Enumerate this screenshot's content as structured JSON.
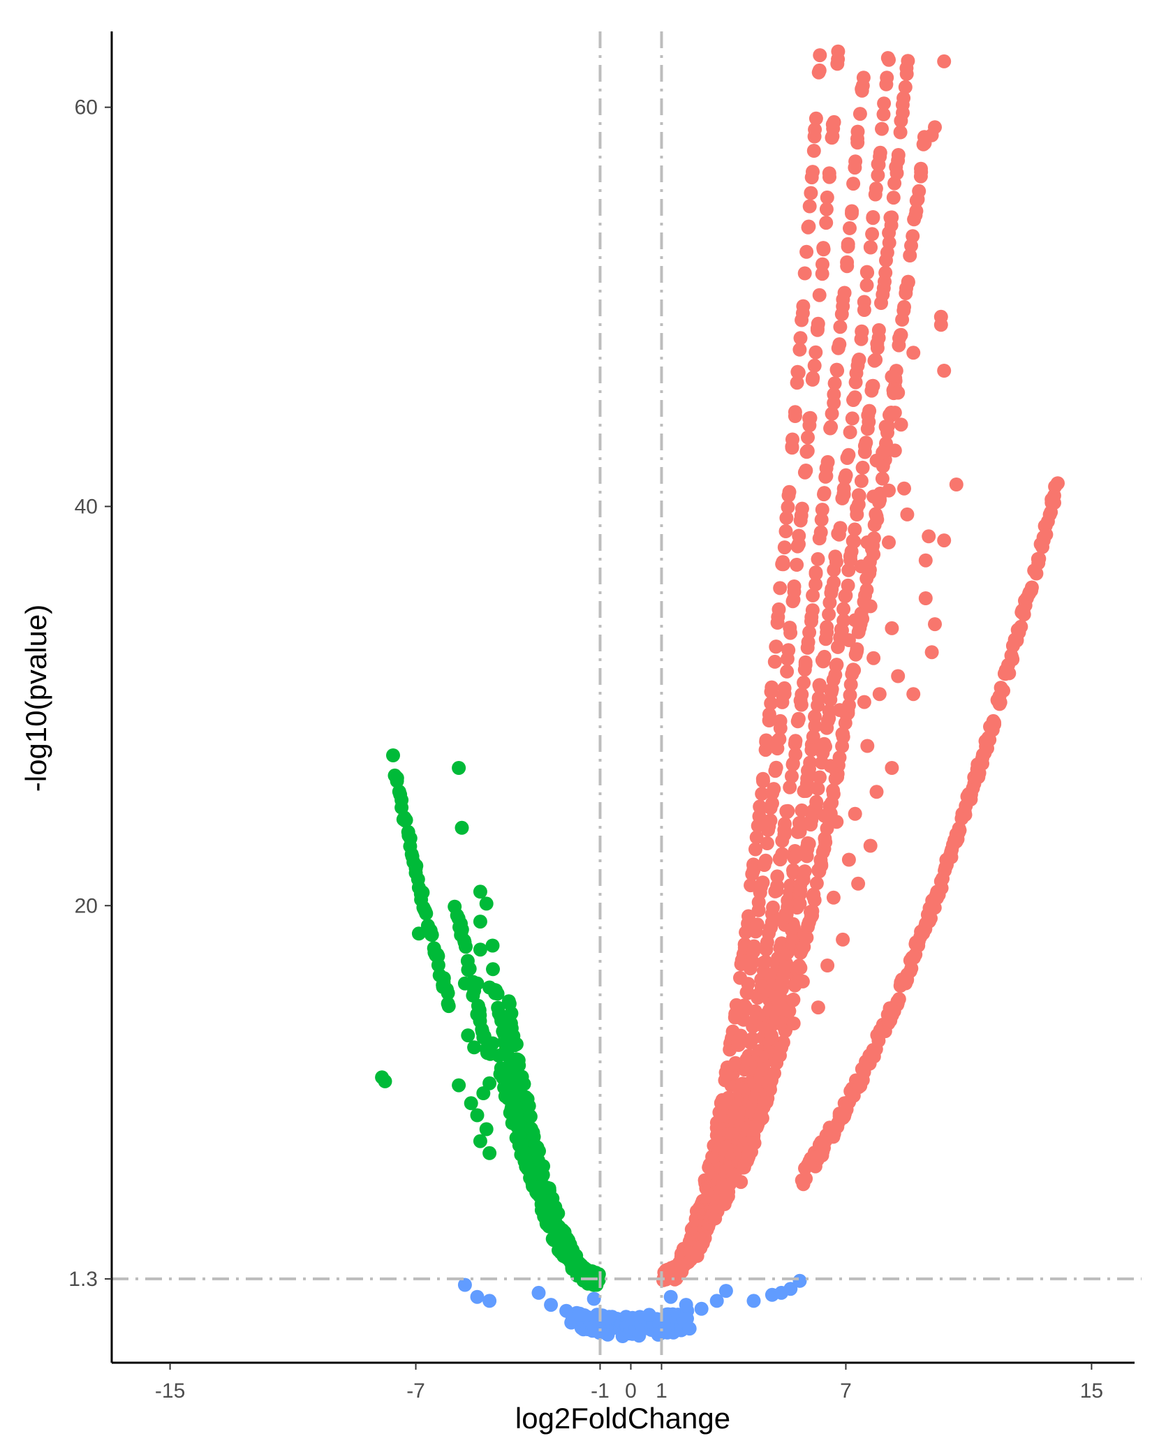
{
  "chart_data": {
    "type": "scatter",
    "title": "",
    "xlabel": "log2FoldChange",
    "ylabel": "-log10(pvalue)",
    "xlim": [
      -16.9,
      16.4
    ],
    "ylim": [
      -2.9,
      63.8
    ],
    "x_ticks": [
      -15,
      -7,
      -1,
      0,
      1,
      7,
      15
    ],
    "x_tick_labels": [
      "-15",
      "-7",
      "-1",
      "0",
      "1",
      "7",
      "15"
    ],
    "y_ticks": [
      1.3,
      20,
      40,
      60
    ],
    "y_tick_labels": [
      "1.3",
      "20",
      "40",
      "60"
    ],
    "grid": false,
    "legend": "none",
    "thresholds": {
      "vertical": [
        -1,
        1
      ],
      "horizontal": 1.3,
      "style": "dashed",
      "color": "#bdbdbd"
    },
    "colors": {
      "down": "#00ba38",
      "up": "#f8766d",
      "not_significant": "#619cff"
    },
    "series": [
      {
        "group": "down",
        "points": [
          [
            -5.6,
            26.9
          ],
          [
            -5.5,
            23.9
          ],
          [
            -4.9,
            20.7
          ],
          [
            -4.7,
            20.1
          ],
          [
            -4.9,
            19.2
          ],
          [
            -6.9,
            18.6
          ],
          [
            -4.5,
            18.0
          ],
          [
            -4.9,
            17.8
          ],
          [
            -5.4,
            16.1
          ],
          [
            -5.0,
            16.1
          ],
          [
            -4.6,
            15.9
          ],
          [
            -5.3,
            13.5
          ],
          [
            -4.8,
            13.4
          ],
          [
            -5.1,
            12.9
          ],
          [
            -4.5,
            13.1
          ],
          [
            -8.1,
            11.4
          ],
          [
            -8.0,
            11.2
          ],
          [
            -5.6,
            11.0
          ],
          [
            -4.6,
            11.1
          ],
          [
            -5.2,
            10.1
          ],
          [
            -4.8,
            10.6
          ],
          [
            -5.0,
            9.5
          ],
          [
            -4.7,
            8.8
          ],
          [
            -4.9,
            8.2
          ],
          [
            -4.6,
            7.6
          ]
        ],
        "curves": [
          {
            "a": 0.57,
            "x_from": -7.7,
            "x_to": -5.9
          },
          {
            "a": 0.85,
            "x_from": -5.7,
            "x_to": -4.6
          },
          {
            "a": 1.25,
            "x_from": -4.5,
            "x_to": -1.05
          },
          {
            "a": 1.55,
            "x_from": -4.0,
            "x_to": -1.05
          },
          {
            "a": 1.0,
            "x_from": -4.3,
            "x_to": -1.05
          }
        ]
      },
      {
        "group": "up",
        "points": [
          [
            10.2,
            62.3
          ],
          [
            9.9,
            59.0
          ],
          [
            9.8,
            58.6
          ],
          [
            10.1,
            49.5
          ],
          [
            10.1,
            49.1
          ],
          [
            10.2,
            46.8
          ],
          [
            9.2,
            47.7
          ],
          [
            8.6,
            46.0
          ],
          [
            8.5,
            46.5
          ],
          [
            8.7,
            45.7
          ],
          [
            8.8,
            44.1
          ],
          [
            8.6,
            44.7
          ],
          [
            8.3,
            44.0
          ],
          [
            8.2,
            42.7
          ],
          [
            8.0,
            42.3
          ],
          [
            8.6,
            42.8
          ],
          [
            8.4,
            40.8
          ],
          [
            8.9,
            40.9
          ],
          [
            10.6,
            41.1
          ],
          [
            9.0,
            39.6
          ],
          [
            7.9,
            40.5
          ],
          [
            8.0,
            39.5
          ],
          [
            7.7,
            38.2
          ],
          [
            9.7,
            38.5
          ],
          [
            10.2,
            38.3
          ],
          [
            9.6,
            37.3
          ],
          [
            7.9,
            37.6
          ],
          [
            8.4,
            38.2
          ],
          [
            7.5,
            37.0
          ],
          [
            9.9,
            34.1
          ],
          [
            9.6,
            35.4
          ],
          [
            7.8,
            35.0
          ],
          [
            7.3,
            34.3
          ],
          [
            8.5,
            33.9
          ],
          [
            9.8,
            32.7
          ],
          [
            7.9,
            32.4
          ],
          [
            7.1,
            33.3
          ],
          [
            8.7,
            31.5
          ],
          [
            7.6,
            30.2
          ],
          [
            7.2,
            31.6
          ],
          [
            8.1,
            30.6
          ],
          [
            6.8,
            29.8
          ],
          [
            9.2,
            30.6
          ],
          [
            6.9,
            28.6
          ],
          [
            7.7,
            28.0
          ],
          [
            8.5,
            26.9
          ],
          [
            6.5,
            27.0
          ],
          [
            8.0,
            25.7
          ],
          [
            7.3,
            24.6
          ],
          [
            6.7,
            24.2
          ],
          [
            7.8,
            23.0
          ],
          [
            6.3,
            24.5
          ],
          [
            7.1,
            22.3
          ],
          [
            6.2,
            22.0
          ],
          [
            7.4,
            21.1
          ],
          [
            5.8,
            23.1
          ],
          [
            6.6,
            20.4
          ],
          [
            5.9,
            19.5
          ],
          [
            6.9,
            18.3
          ],
          [
            5.5,
            20.1
          ],
          [
            6.4,
            17.0
          ],
          [
            5.6,
            16.2
          ],
          [
            6.1,
            14.9
          ],
          [
            5.3,
            14.1
          ],
          [
            4.9,
            12.9
          ]
        ],
        "curves": [
          {
            "a": 2.3,
            "x_from": 1.05,
            "x_to": 7.0
          },
          {
            "a": 1.85,
            "x_from": 1.05,
            "x_to": 7.5
          },
          {
            "a": 1.4,
            "x_from": 1.4,
            "x_to": 8.2
          },
          {
            "a": 1.12,
            "x_from": 2.1,
            "x_to": 8.6
          },
          {
            "a": 0.95,
            "x_from": 3.0,
            "x_to": 9.1
          },
          {
            "a": 0.78,
            "x_from": 3.6,
            "x_to": 9.6
          },
          {
            "a": 0.24,
            "x_from": 5.6,
            "x_to": 13.9
          }
        ]
      },
      {
        "group": "not_significant",
        "points": [
          [
            -5.4,
            1.0
          ],
          [
            -5.0,
            0.4
          ],
          [
            -4.6,
            0.2
          ],
          [
            4.0,
            0.2
          ],
          [
            4.6,
            0.5
          ],
          [
            4.9,
            0.6
          ],
          [
            5.2,
            0.8
          ],
          [
            5.5,
            1.2
          ],
          [
            -2.6,
            0.0
          ],
          [
            -2.1,
            -0.3
          ],
          [
            -1.6,
            -0.5
          ],
          [
            -1.2,
            0.3
          ],
          [
            1.3,
            0.4
          ],
          [
            1.8,
            0.0
          ],
          [
            2.3,
            -0.2
          ],
          [
            2.8,
            0.2
          ],
          [
            -3.0,
            0.6
          ],
          [
            3.1,
            0.7
          ],
          [
            -0.7,
            -0.6
          ],
          [
            0.6,
            -0.5
          ]
        ],
        "curves": [
          {
            "a": 0.1,
            "x_from": -1.9,
            "x_to": 1.9
          }
        ]
      }
    ]
  }
}
